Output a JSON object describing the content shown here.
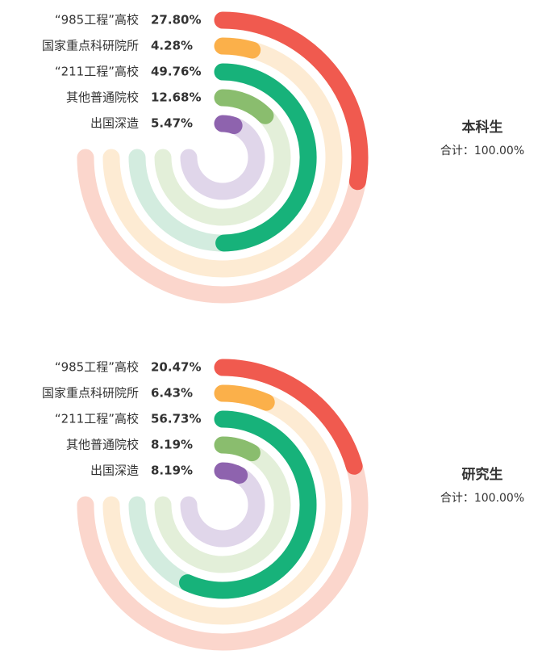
{
  "chart_data": [
    {
      "type": "radial_bar",
      "title": "本科生",
      "subtitle": "合计：100.00%",
      "categories": [
        "“985工程”高校",
        "国家重点科研院所",
        "“211工程”高校",
        "其他普通院校",
        "出国深造"
      ],
      "values": [
        27.8,
        4.28,
        49.76,
        12.68,
        5.47
      ],
      "value_labels": [
        "27.80%",
        "4.28%",
        "49.76%",
        "12.68%",
        "5.47%"
      ],
      "colors": [
        "#f05a4f",
        "#fbb04a",
        "#17b27a",
        "#8abd6e",
        "#8e63ae"
      ],
      "track_colors": [
        "#fbd6cc",
        "#fdebd3",
        "#d3ecdf",
        "#e3efd9",
        "#e0d6ea"
      ]
    },
    {
      "type": "radial_bar",
      "title": "研究生",
      "subtitle": "合计：100.00%",
      "categories": [
        "“985工程”高校",
        "国家重点科研院所",
        "“211工程”高校",
        "其他普通院校",
        "出国深造"
      ],
      "values": [
        20.47,
        6.43,
        56.73,
        8.19,
        8.19
      ],
      "value_labels": [
        "20.47%",
        "6.43%",
        "56.73%",
        "8.19%",
        "8.19%"
      ],
      "colors": [
        "#f05a4f",
        "#fbb04a",
        "#17b27a",
        "#8abd6e",
        "#8e63ae"
      ],
      "track_colors": [
        "#fbd6cc",
        "#fdebd3",
        "#d3ecdf",
        "#e3efd9",
        "#e0d6ea"
      ]
    }
  ]
}
